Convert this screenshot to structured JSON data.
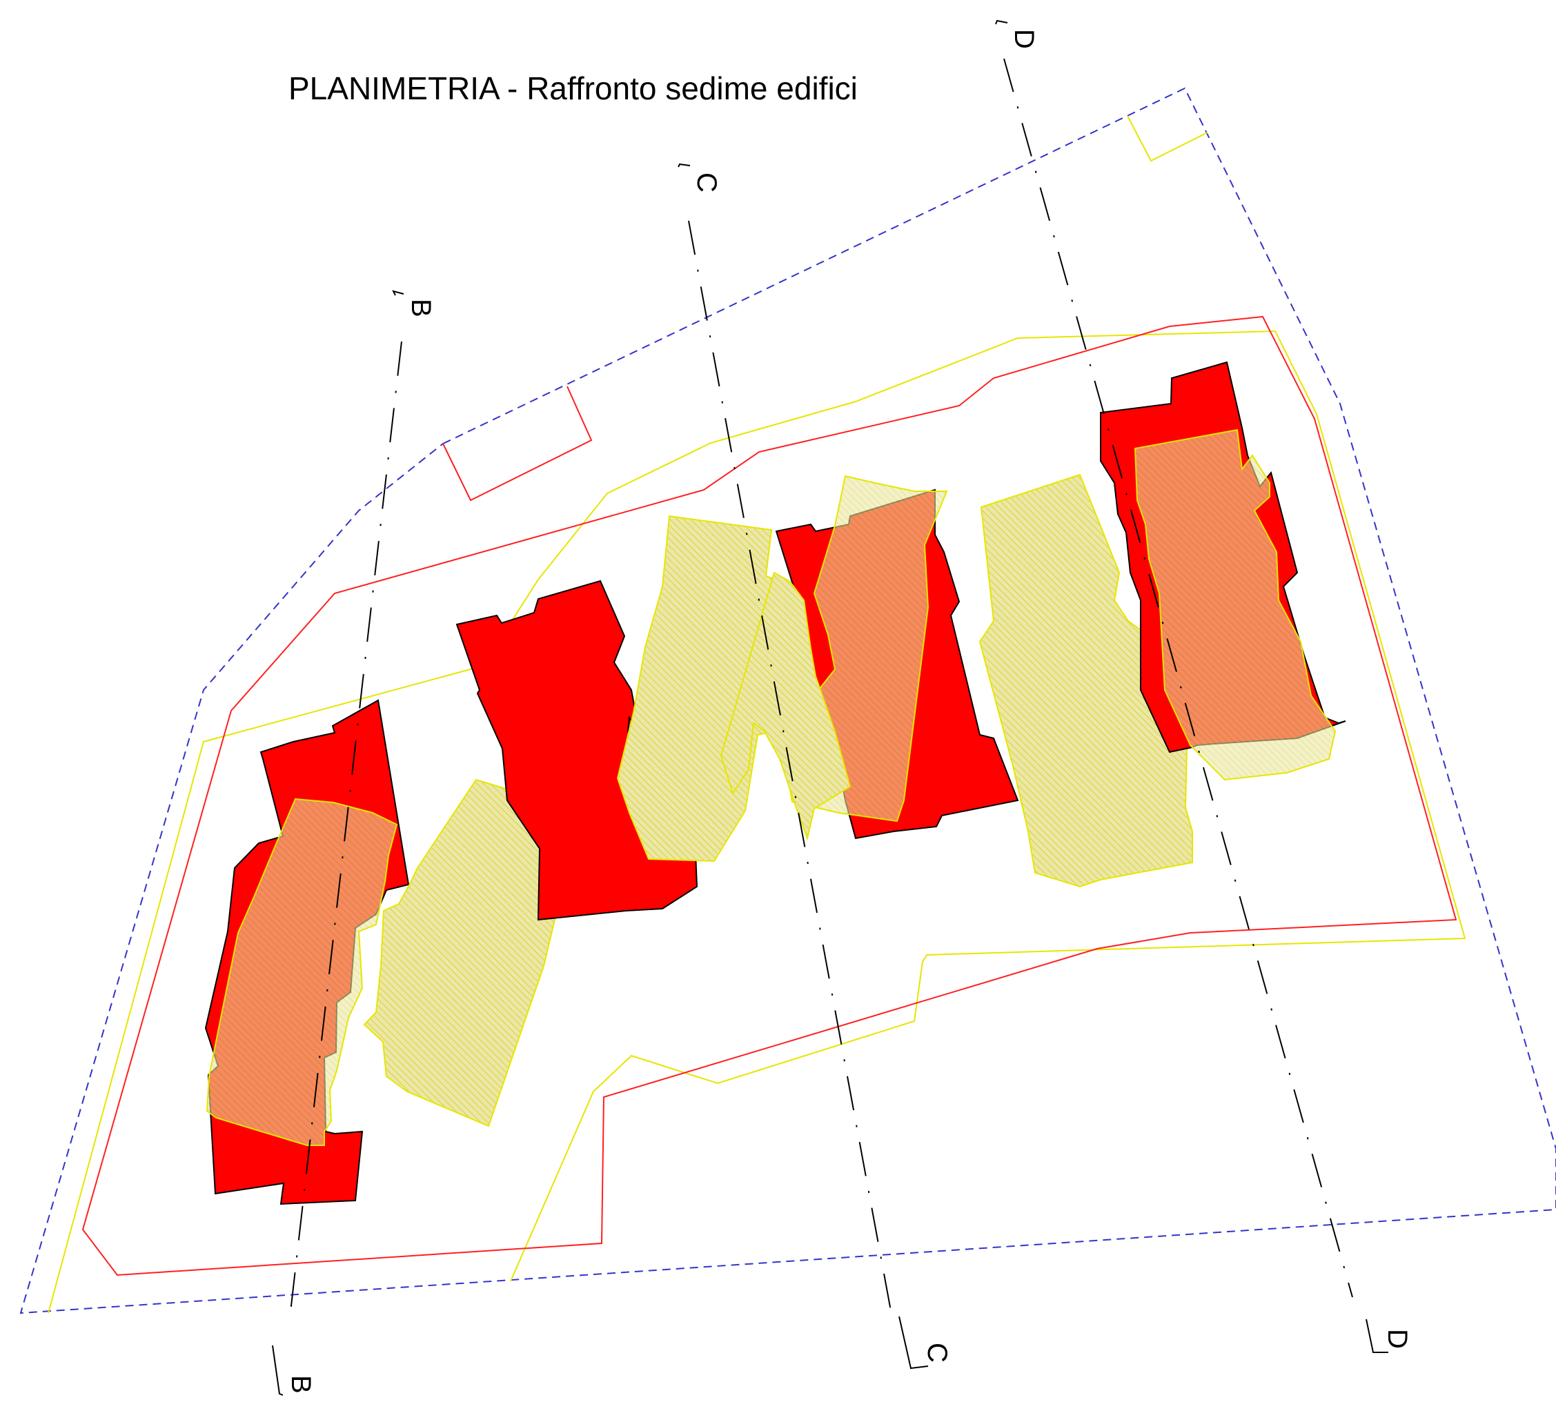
{
  "title": "PLANIMETRIA - Raffronto sedime edifici",
  "section_labels": {
    "b_top": "B",
    "b_bottom": "B",
    "c_top": "C",
    "c_bottom": "C",
    "d_top": "D",
    "d_bottom": "D"
  },
  "colors": {
    "new_building": "#ff0000",
    "existing_building_hatch": "#e9e4a0",
    "existing_outline": "#e6e600",
    "proposed_boundary": "#ff2020",
    "lot_boundary": "#3333cc",
    "section_line": "#000000"
  }
}
